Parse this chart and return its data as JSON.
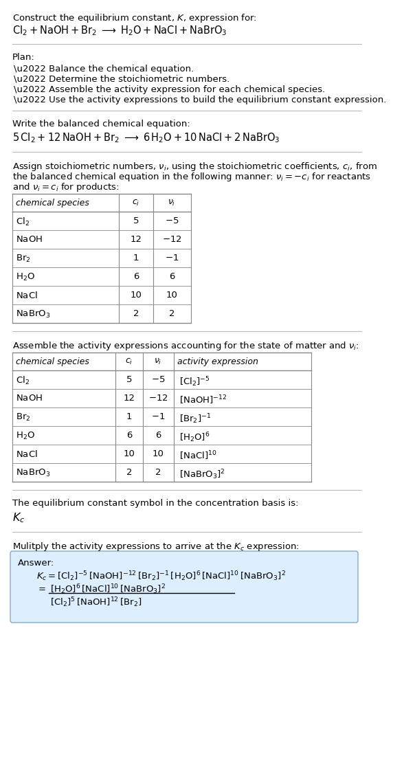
{
  "bg_color": "#ffffff",
  "answer_box_color": "#ddeeff",
  "fontsize": 9.5,
  "fs_small": 9.0,
  "sections": {
    "title1": "Construct the equilibrium constant, $K$, expression for:",
    "title2": "$\\mathrm{Cl_2 + NaOH + Br_2} \\;\\longrightarrow\\; \\mathrm{H_2O + NaCl + NaBrO_3}$",
    "plan_header": "Plan:",
    "plan_items": [
      "\\u2022 Balance the chemical equation.",
      "\\u2022 Determine the stoichiometric numbers.",
      "\\u2022 Assemble the activity expression for each chemical species.",
      "\\u2022 Use the activity expressions to build the equilibrium constant expression."
    ],
    "balanced_header": "Write the balanced chemical equation:",
    "balanced_eq": "$5\\,\\mathrm{Cl_2} + 12\\,\\mathrm{NaOH} + \\mathrm{Br_2} \\;\\longrightarrow\\; 6\\,\\mathrm{H_2O} + 10\\,\\mathrm{NaCl} + 2\\,\\mathrm{NaBrO_3}$",
    "stoich_lines": [
      "Assign stoichiometric numbers, $\\nu_i$, using the stoichiometric coefficients, $c_i$, from",
      "the balanced chemical equation in the following manner: $\\nu_i = -c_i$ for reactants",
      "and $\\nu_i = c_i$ for products:"
    ],
    "table1_header": [
      "chemical species",
      "$c_i$",
      "$\\nu_i$"
    ],
    "table1_data": [
      [
        "$\\mathrm{Cl_2}$",
        "5",
        "$-5$"
      ],
      [
        "$\\mathrm{NaOH}$",
        "12",
        "$-12$"
      ],
      [
        "$\\mathrm{Br_2}$",
        "1",
        "$-1$"
      ],
      [
        "$\\mathrm{H_2O}$",
        "6",
        "6"
      ],
      [
        "$\\mathrm{NaCl}$",
        "10",
        "10"
      ],
      [
        "$\\mathrm{NaBrO_3}$",
        "2",
        "2"
      ]
    ],
    "activity_line": "Assemble the activity expressions accounting for the state of matter and $\\nu_i$:",
    "table2_header": [
      "chemical species",
      "$c_i$",
      "$\\nu_i$",
      "activity expression"
    ],
    "table2_data": [
      [
        "$\\mathrm{Cl_2}$",
        "5",
        "$-5$",
        "$[\\mathrm{Cl_2}]^{-5}$"
      ],
      [
        "$\\mathrm{NaOH}$",
        "12",
        "$-12$",
        "$[\\mathrm{NaOH}]^{-12}$"
      ],
      [
        "$\\mathrm{Br_2}$",
        "1",
        "$-1$",
        "$[\\mathrm{Br_2}]^{-1}$"
      ],
      [
        "$\\mathrm{H_2O}$",
        "6",
        "6",
        "$[\\mathrm{H_2O}]^6$"
      ],
      [
        "$\\mathrm{NaCl}$",
        "10",
        "10",
        "$[\\mathrm{NaCl}]^{10}$"
      ],
      [
        "$\\mathrm{NaBrO_3}$",
        "2",
        "2",
        "$[\\mathrm{NaBrO_3}]^2$"
      ]
    ],
    "kc_line": "The equilibrium constant symbol in the concentration basis is:",
    "kc_symbol": "$K_c$",
    "multiply_line": "Mulitply the activity expressions to arrive at the $K_c$ expression:",
    "answer_label": "Answer:",
    "ans_eq1": "$K_c = [\\mathrm{Cl_2}]^{-5}\\,[\\mathrm{NaOH}]^{-12}\\,[\\mathrm{Br_2}]^{-1}\\,[\\mathrm{H_2O}]^{6}\\,[\\mathrm{NaCl}]^{10}\\,[\\mathrm{NaBrO_3}]^{2}$",
    "ans_eq2_eq": "$= $",
    "ans_eq2_num": "$[\\mathrm{H_2O}]^6\\,[\\mathrm{NaCl}]^{10}\\,[\\mathrm{NaBrO_3}]^2$",
    "ans_eq2_den": "$[\\mathrm{Cl_2}]^5\\,[\\mathrm{NaOH}]^{12}\\,[\\mathrm{Br_2}]$"
  }
}
